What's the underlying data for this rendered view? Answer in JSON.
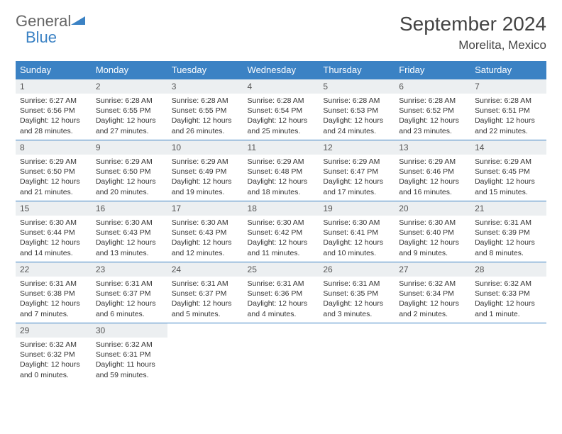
{
  "brand": {
    "name1": "General",
    "name2": "Blue"
  },
  "title": "September 2024",
  "location": "Morelita, Mexico",
  "colors": {
    "header_bg": "#3b82c4",
    "header_text": "#ffffff",
    "daynum_bg": "#eceff1",
    "border": "#3b82c4",
    "body_text": "#333333",
    "title_text": "#444444"
  },
  "weekdays": [
    "Sunday",
    "Monday",
    "Tuesday",
    "Wednesday",
    "Thursday",
    "Friday",
    "Saturday"
  ],
  "weeks": [
    [
      {
        "n": "1",
        "sr": "6:27 AM",
        "ss": "6:56 PM",
        "dl": "12 hours and 28 minutes."
      },
      {
        "n": "2",
        "sr": "6:28 AM",
        "ss": "6:55 PM",
        "dl": "12 hours and 27 minutes."
      },
      {
        "n": "3",
        "sr": "6:28 AM",
        "ss": "6:55 PM",
        "dl": "12 hours and 26 minutes."
      },
      {
        "n": "4",
        "sr": "6:28 AM",
        "ss": "6:54 PM",
        "dl": "12 hours and 25 minutes."
      },
      {
        "n": "5",
        "sr": "6:28 AM",
        "ss": "6:53 PM",
        "dl": "12 hours and 24 minutes."
      },
      {
        "n": "6",
        "sr": "6:28 AM",
        "ss": "6:52 PM",
        "dl": "12 hours and 23 minutes."
      },
      {
        "n": "7",
        "sr": "6:28 AM",
        "ss": "6:51 PM",
        "dl": "12 hours and 22 minutes."
      }
    ],
    [
      {
        "n": "8",
        "sr": "6:29 AM",
        "ss": "6:50 PM",
        "dl": "12 hours and 21 minutes."
      },
      {
        "n": "9",
        "sr": "6:29 AM",
        "ss": "6:50 PM",
        "dl": "12 hours and 20 minutes."
      },
      {
        "n": "10",
        "sr": "6:29 AM",
        "ss": "6:49 PM",
        "dl": "12 hours and 19 minutes."
      },
      {
        "n": "11",
        "sr": "6:29 AM",
        "ss": "6:48 PM",
        "dl": "12 hours and 18 minutes."
      },
      {
        "n": "12",
        "sr": "6:29 AM",
        "ss": "6:47 PM",
        "dl": "12 hours and 17 minutes."
      },
      {
        "n": "13",
        "sr": "6:29 AM",
        "ss": "6:46 PM",
        "dl": "12 hours and 16 minutes."
      },
      {
        "n": "14",
        "sr": "6:29 AM",
        "ss": "6:45 PM",
        "dl": "12 hours and 15 minutes."
      }
    ],
    [
      {
        "n": "15",
        "sr": "6:30 AM",
        "ss": "6:44 PM",
        "dl": "12 hours and 14 minutes."
      },
      {
        "n": "16",
        "sr": "6:30 AM",
        "ss": "6:43 PM",
        "dl": "12 hours and 13 minutes."
      },
      {
        "n": "17",
        "sr": "6:30 AM",
        "ss": "6:43 PM",
        "dl": "12 hours and 12 minutes."
      },
      {
        "n": "18",
        "sr": "6:30 AM",
        "ss": "6:42 PM",
        "dl": "12 hours and 11 minutes."
      },
      {
        "n": "19",
        "sr": "6:30 AM",
        "ss": "6:41 PM",
        "dl": "12 hours and 10 minutes."
      },
      {
        "n": "20",
        "sr": "6:30 AM",
        "ss": "6:40 PM",
        "dl": "12 hours and 9 minutes."
      },
      {
        "n": "21",
        "sr": "6:31 AM",
        "ss": "6:39 PM",
        "dl": "12 hours and 8 minutes."
      }
    ],
    [
      {
        "n": "22",
        "sr": "6:31 AM",
        "ss": "6:38 PM",
        "dl": "12 hours and 7 minutes."
      },
      {
        "n": "23",
        "sr": "6:31 AM",
        "ss": "6:37 PM",
        "dl": "12 hours and 6 minutes."
      },
      {
        "n": "24",
        "sr": "6:31 AM",
        "ss": "6:37 PM",
        "dl": "12 hours and 5 minutes."
      },
      {
        "n": "25",
        "sr": "6:31 AM",
        "ss": "6:36 PM",
        "dl": "12 hours and 4 minutes."
      },
      {
        "n": "26",
        "sr": "6:31 AM",
        "ss": "6:35 PM",
        "dl": "12 hours and 3 minutes."
      },
      {
        "n": "27",
        "sr": "6:32 AM",
        "ss": "6:34 PM",
        "dl": "12 hours and 2 minutes."
      },
      {
        "n": "28",
        "sr": "6:32 AM",
        "ss": "6:33 PM",
        "dl": "12 hours and 1 minute."
      }
    ],
    [
      {
        "n": "29",
        "sr": "6:32 AM",
        "ss": "6:32 PM",
        "dl": "12 hours and 0 minutes."
      },
      {
        "n": "30",
        "sr": "6:32 AM",
        "ss": "6:31 PM",
        "dl": "11 hours and 59 minutes."
      },
      null,
      null,
      null,
      null,
      null
    ]
  ],
  "labels": {
    "sunrise": "Sunrise:",
    "sunset": "Sunset:",
    "daylight": "Daylight:"
  }
}
